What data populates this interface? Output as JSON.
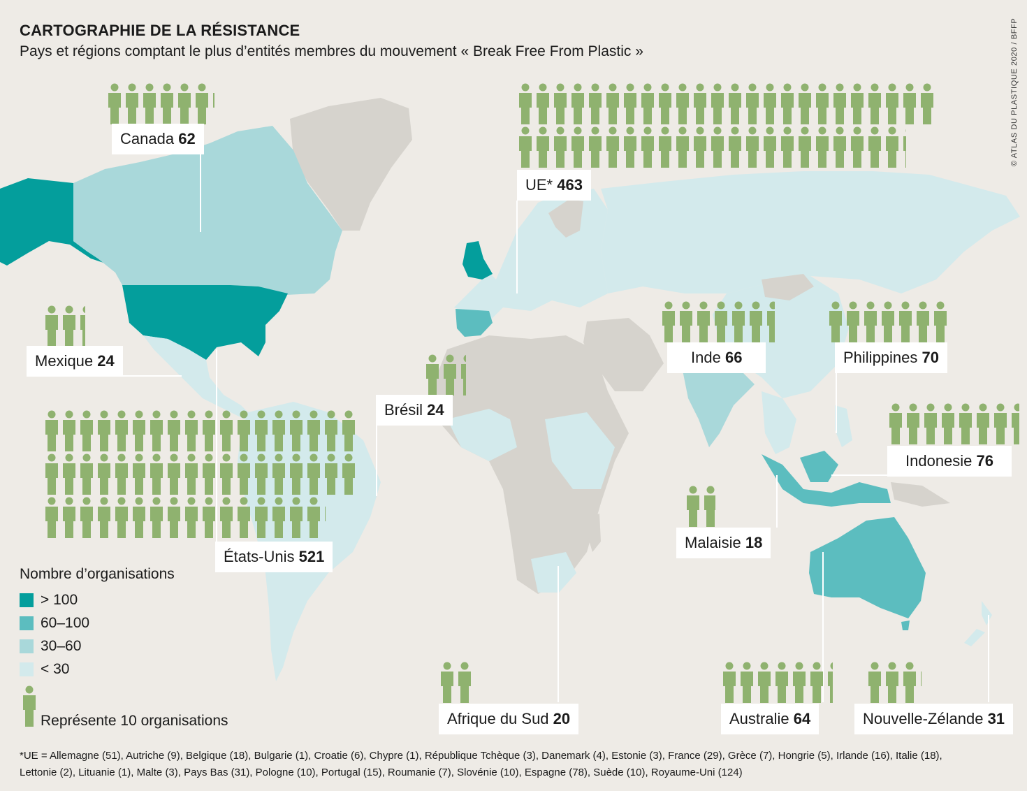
{
  "title": "CARTOGRAPHIE DE LA RÉSISTANCE",
  "subtitle": "Pays et régions comptant le plus d’entités membres du mouvement « Break Free From Plastic »",
  "credit": "© ATLAS DU PLASTIQUE 2020 / BFFP",
  "colors": {
    "background": "#eeebe6",
    "land_none": "#d6d3cd",
    "person": "#8fb26f",
    "label_bg": "#ffffff"
  },
  "legend": {
    "title": "Nombre d’organisations",
    "items": [
      {
        "label": "> 100",
        "color": "#049e9c"
      },
      {
        "label": "60–100",
        "color": "#5cbdbf"
      },
      {
        "label": "30–60",
        "color": "#a9d8da"
      },
      {
        "label": "< 30",
        "color": "#d3eaec"
      }
    ],
    "person_label": "Représente 10 organisations"
  },
  "regions": [
    {
      "name": "Canada",
      "value": "62",
      "count": 62
    },
    {
      "name": "UE*",
      "value": "463",
      "count": 463
    },
    {
      "name": "Mexique",
      "value": "24",
      "count": 24
    },
    {
      "name": "États-Unis",
      "value": "521",
      "count": 521
    },
    {
      "name": "Brésil",
      "value": "24",
      "count": 24
    },
    {
      "name": "Inde",
      "value": "66",
      "count": 66
    },
    {
      "name": "Philippines",
      "value": "70",
      "count": 70
    },
    {
      "name": "Indonesie",
      "value": "76",
      "count": 76
    },
    {
      "name": "Malaisie",
      "value": "18",
      "count": 18
    },
    {
      "name": "Afrique du Sud",
      "value": "20",
      "count": 20
    },
    {
      "name": "Australie",
      "value": "64",
      "count": 64
    },
    {
      "name": "Nouvelle-Zélande",
      "value": "31",
      "count": 31
    }
  ],
  "footnote": "*UE = Allemagne (51), Autriche (9), Belgique (18), Bulgarie (1), Croatie (6), Chypre (1), République Tchèque (3), Danemark (4), Estonie (3), France (29), Grèce (7), Hongrie (5), Irlande (16), Italie (18), Lettonie (2), Lituanie (1), Malte (3), Pays Bas (31), Pologne (10), Portugal (15), Roumanie (7), Slovénie (10), Espagne (78), Suède (10), Royaume-Uni (124)"
}
